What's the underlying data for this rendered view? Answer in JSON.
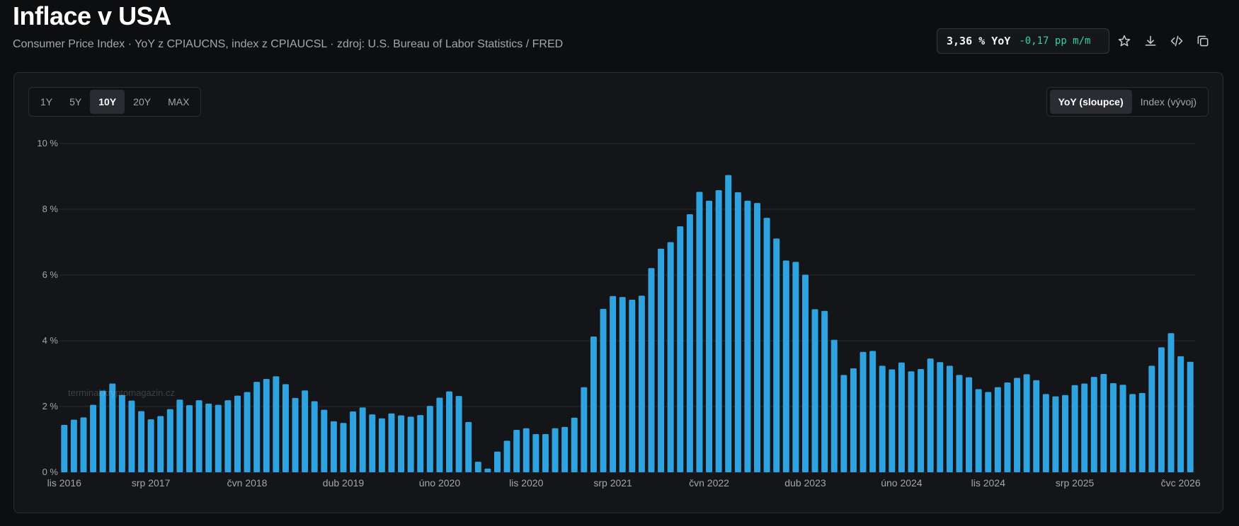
{
  "header": {
    "title": "Inflace v USA",
    "subtitle": "Consumer Price Index · YoY z CPIAUCNS, index z CPIAUCSL · zdroj: U.S. Bureau of Labor Statistics / FRED"
  },
  "stat": {
    "value": "3,36 % YoY",
    "delta": "-0,17 pp m/m",
    "delta_color": "#34d399"
  },
  "toolbar": {
    "icons": [
      "star-icon",
      "download-icon",
      "code-icon",
      "copy-icon"
    ]
  },
  "range_tabs": [
    "1Y",
    "5Y",
    "10Y",
    "20Y",
    "MAX"
  ],
  "range_active": "10Y",
  "mode_tabs": [
    "YoY (sloupce)",
    "Index (vývoj)"
  ],
  "mode_active": "YoY (sloupce)",
  "watermark": "terminal.kryptomagazin.cz",
  "colors": {
    "bar": "#2fa3e0",
    "background": "#0d0e10",
    "panel": "#141518",
    "grid": "#2a2c31",
    "axis_text": "#a3a6ad"
  },
  "chart_data": {
    "type": "bar",
    "title": "",
    "xlabel": "",
    "ylabel": "",
    "ylim": [
      0,
      10
    ],
    "yticks": [
      "0 %",
      "2 %",
      "4 %",
      "6 %",
      "8 %",
      "10 %"
    ],
    "x_tick_labels": [
      {
        "label": "lis 2016",
        "index": 0
      },
      {
        "label": "srp 2017",
        "index": 9
      },
      {
        "label": "čvn 2018",
        "index": 19
      },
      {
        "label": "dub 2019",
        "index": 29
      },
      {
        "label": "úno 2020",
        "index": 39
      },
      {
        "label": "lis 2020",
        "index": 48
      },
      {
        "label": "srp 2021",
        "index": 57
      },
      {
        "label": "čvn 2022",
        "index": 67
      },
      {
        "label": "dub 2023",
        "index": 77
      },
      {
        "label": "úno 2024",
        "index": 87
      },
      {
        "label": "lis 2024",
        "index": 96
      },
      {
        "label": "srp 2025",
        "index": 105
      },
      {
        "label": "čvc 2026",
        "index": 116
      }
    ],
    "grid": true,
    "values": [
      1.44,
      1.6,
      1.67,
      2.05,
      2.48,
      2.7,
      2.35,
      2.18,
      1.86,
      1.61,
      1.71,
      1.92,
      2.21,
      2.04,
      2.19,
      2.09,
      2.05,
      2.19,
      2.33,
      2.44,
      2.75,
      2.84,
      2.92,
      2.68,
      2.26,
      2.49,
      2.16,
      1.9,
      1.55,
      1.5,
      1.85,
      1.97,
      1.76,
      1.64,
      1.79,
      1.73,
      1.69,
      1.74,
      2.02,
      2.27,
      2.46,
      2.32,
      1.53,
      0.32,
      0.11,
      0.63,
      0.96,
      1.29,
      1.34,
      1.16,
      1.16,
      1.34,
      1.38,
      1.66,
      2.59,
      4.13,
      4.97,
      5.36,
      5.33,
      5.25,
      5.37,
      6.21,
      6.8,
      7.0,
      7.48,
      7.85,
      8.53,
      8.26,
      8.58,
      9.04,
      8.52,
      8.26,
      8.19,
      7.74,
      7.11,
      6.44,
      6.4,
      6.01,
      4.96,
      4.91,
      4.03,
      2.96,
      3.16,
      3.66,
      3.69,
      3.24,
      3.13,
      3.34,
      3.07,
      3.14,
      3.46,
      3.35,
      3.24,
      2.96,
      2.89,
      2.53,
      2.44,
      2.59,
      2.73,
      2.87,
      2.98,
      2.8,
      2.38,
      2.31,
      2.35,
      2.65,
      2.7,
      2.9,
      2.99,
      2.71,
      2.66,
      2.38,
      2.41,
      3.24,
      3.8,
      4.23,
      3.53,
      3.36
    ]
  }
}
